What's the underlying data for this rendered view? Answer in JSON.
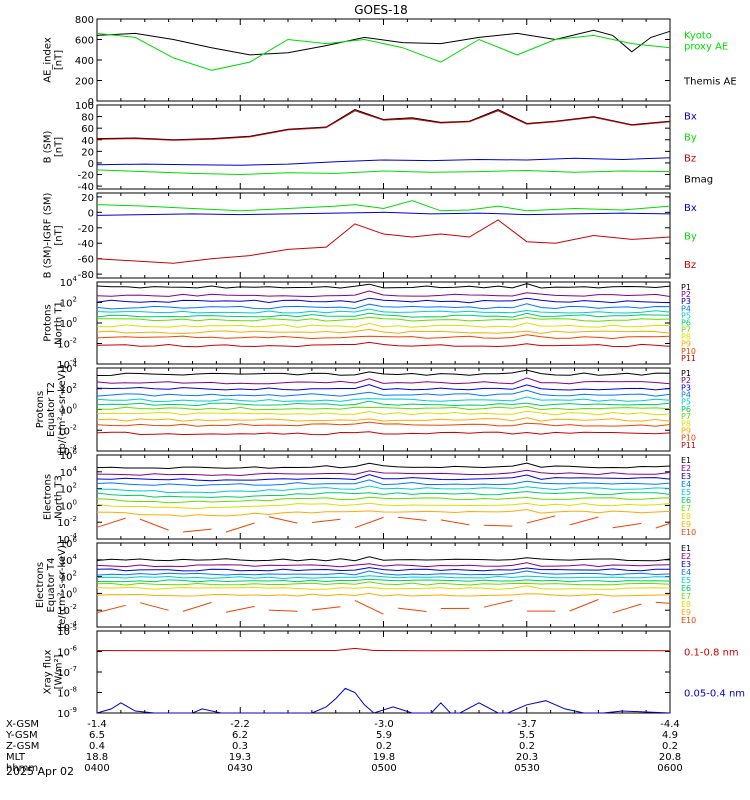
{
  "title": "GOES-18",
  "date": "2025 Apr 02",
  "ephemeris": {
    "rows": [
      {
        "label": "X-GSM",
        "values": [
          "-1.4",
          "-2.2",
          "-3.0",
          "-3.7",
          "-4.4"
        ]
      },
      {
        "label": "Y-GSM",
        "values": [
          "6.5",
          "6.2",
          "5.9",
          "5.5",
          "4.9"
        ]
      },
      {
        "label": "Z-GSM",
        "values": [
          "0.4",
          "0.3",
          "0.2",
          "0.2",
          "0.2"
        ]
      },
      {
        "label": "MLT",
        "values": [
          "18.8",
          "19.3",
          "19.8",
          "20.3",
          "20.8"
        ]
      },
      {
        "label": "hhmm",
        "values": [
          "0400",
          "0430",
          "0500",
          "0530",
          "0600"
        ]
      }
    ]
  },
  "colors": {
    "black": "#000000",
    "green": "#00dd00",
    "blue": "#0000cc",
    "red": "#cc0000",
    "ramp": [
      "#000000",
      "#880088",
      "#0000dd",
      "#0077ff",
      "#00cccc",
      "#00cc66",
      "#66dd00",
      "#dddd00",
      "#ffaa00",
      "#ee4400",
      "#cc0000"
    ]
  },
  "chart_data": [
    {
      "type": "line",
      "panel": "ae",
      "ylabel": [
        "AE_index",
        "[nT]"
      ],
      "ylim": [
        0,
        800
      ],
      "yticks": [
        {
          "v": 0,
          "t": "0"
        },
        {
          "v": 200,
          "t": "200"
        },
        {
          "v": 400,
          "t": "400"
        },
        {
          "v": 600,
          "t": "600"
        },
        {
          "v": 800,
          "t": "800"
        }
      ],
      "xlim": [
        0,
        120
      ],
      "legend": [
        {
          "lines": [
            "Kyoto",
            "proxy AE"
          ],
          "color": "#00dd00"
        },
        {
          "lines": [
            "Themis AE"
          ],
          "color": "#000000"
        }
      ],
      "series": [
        {
          "name": "Themis AE",
          "color": "#000000",
          "x": [
            0,
            8,
            16,
            24,
            32,
            40,
            48,
            56,
            64,
            72,
            80,
            88,
            96,
            104,
            108,
            112,
            116,
            120
          ],
          "y": [
            640,
            660,
            600,
            520,
            450,
            470,
            540,
            620,
            570,
            560,
            620,
            660,
            600,
            690,
            640,
            480,
            620,
            680
          ]
        },
        {
          "name": "Kyoto proxy AE",
          "color": "#00dd00",
          "x": [
            0,
            8,
            16,
            24,
            32,
            40,
            48,
            56,
            64,
            72,
            80,
            88,
            96,
            104,
            112,
            120
          ],
          "y": [
            660,
            620,
            420,
            300,
            380,
            600,
            560,
            600,
            520,
            380,
            600,
            450,
            600,
            640,
            560,
            520
          ]
        }
      ]
    },
    {
      "type": "line",
      "panel": "bsm",
      "ylabel": [
        "B (SM)",
        "[nT]"
      ],
      "ylim": [
        -45,
        100
      ],
      "yticks": [
        {
          "v": -40,
          "t": "-40"
        },
        {
          "v": -20,
          "t": "-20"
        },
        {
          "v": 0,
          "t": "0"
        },
        {
          "v": 20,
          "t": "20"
        },
        {
          "v": 40,
          "t": "40"
        },
        {
          "v": 60,
          "t": "60"
        },
        {
          "v": 80,
          "t": "80"
        },
        {
          "v": 100,
          "t": "100"
        }
      ],
      "xlim": [
        0,
        120
      ],
      "legend": [
        {
          "lines": [
            "Bx"
          ],
          "color": "#0000cc"
        },
        {
          "lines": [
            "By"
          ],
          "color": "#00dd00"
        },
        {
          "lines": [
            "Bz"
          ],
          "color": "#cc0000"
        },
        {
          "lines": [
            "Bmag"
          ],
          "color": "#000000"
        }
      ],
      "series": [
        {
          "name": "Bmag",
          "color": "#000000",
          "x": [
            0,
            8,
            16,
            24,
            32,
            40,
            48,
            54,
            60,
            66,
            72,
            78,
            84,
            90,
            96,
            104,
            112,
            120
          ],
          "y": [
            42,
            43,
            40,
            42,
            46,
            58,
            62,
            92,
            75,
            78,
            70,
            72,
            92,
            68,
            72,
            80,
            66,
            72
          ]
        },
        {
          "name": "Bz",
          "color": "#cc0000",
          "x": [
            0,
            8,
            16,
            24,
            32,
            40,
            48,
            54,
            60,
            66,
            72,
            78,
            84,
            90,
            96,
            104,
            112,
            120
          ],
          "y": [
            41,
            42,
            39,
            41,
            45,
            57,
            61,
            90,
            74,
            76,
            69,
            71,
            90,
            67,
            71,
            79,
            65,
            71
          ]
        },
        {
          "name": "Bx",
          "color": "#0000cc",
          "x": [
            0,
            10,
            20,
            30,
            40,
            50,
            60,
            70,
            80,
            90,
            100,
            110,
            120
          ],
          "y": [
            -3,
            -2,
            -3,
            -4,
            -2,
            2,
            5,
            4,
            6,
            5,
            8,
            6,
            9
          ]
        },
        {
          "name": "By",
          "color": "#00dd00",
          "x": [
            0,
            10,
            20,
            30,
            40,
            50,
            60,
            70,
            80,
            90,
            100,
            110,
            120
          ],
          "y": [
            -12,
            -15,
            -18,
            -20,
            -17,
            -18,
            -14,
            -16,
            -15,
            -13,
            -16,
            -14,
            -15
          ]
        }
      ]
    },
    {
      "type": "line",
      "panel": "digrf",
      "ylabel": [
        "B (SM)-IGRF (SM)",
        "[nT]"
      ],
      "ylim": [
        -85,
        25
      ],
      "yticks": [
        {
          "v": -80,
          "t": "-80"
        },
        {
          "v": -60,
          "t": "-60"
        },
        {
          "v": -40,
          "t": "-40"
        },
        {
          "v": -20,
          "t": "-20"
        },
        {
          "v": 0,
          "t": "0"
        },
        {
          "v": 20,
          "t": "20"
        }
      ],
      "xlim": [
        0,
        120
      ],
      "legend": [
        {
          "lines": [
            "Bx"
          ],
          "color": "#0000cc"
        },
        {
          "lines": [
            "By"
          ],
          "color": "#00dd00"
        },
        {
          "lines": [
            "Bz"
          ],
          "color": "#cc0000"
        }
      ],
      "series": [
        {
          "name": "Bz",
          "color": "#cc0000",
          "x": [
            0,
            8,
            16,
            24,
            32,
            40,
            48,
            54,
            60,
            66,
            72,
            78,
            84,
            90,
            96,
            104,
            112,
            120
          ],
          "y": [
            -60,
            -63,
            -66,
            -60,
            -56,
            -48,
            -45,
            -15,
            -28,
            -32,
            -28,
            -32,
            -10,
            -38,
            -40,
            -30,
            -35,
            -32
          ]
        },
        {
          "name": "By",
          "color": "#00dd00",
          "x": [
            0,
            10,
            20,
            30,
            40,
            50,
            54,
            60,
            66,
            72,
            78,
            84,
            90,
            100,
            110,
            120
          ],
          "y": [
            10,
            8,
            5,
            2,
            5,
            8,
            10,
            5,
            15,
            2,
            3,
            8,
            2,
            5,
            3,
            8
          ]
        },
        {
          "name": "Bx",
          "color": "#0000cc",
          "x": [
            0,
            10,
            20,
            30,
            40,
            50,
            60,
            70,
            80,
            90,
            100,
            110,
            120
          ],
          "y": [
            -4,
            -3,
            -2,
            -3,
            -2,
            -1,
            0,
            -2,
            -1,
            -3,
            -2,
            -1,
            -2
          ]
        }
      ]
    },
    {
      "type": "line",
      "panel": "protons_north",
      "log": true,
      "ylabel": [
        "Protons",
        "North T1"
      ],
      "ylim": [
        -4,
        4
      ],
      "yticks": [
        {
          "v": -4,
          "t": "10",
          "e": "-4"
        },
        {
          "v": -2,
          "t": "10",
          "e": "-2"
        },
        {
          "v": 0,
          "t": "10",
          "e": "0"
        },
        {
          "v": 2,
          "t": "10",
          "e": "2"
        },
        {
          "v": 4,
          "t": "10",
          "e": "4"
        }
      ],
      "xlim": [
        0,
        120
      ],
      "legend_labels": [
        "P1",
        "P2",
        "P3",
        "P4",
        "P5",
        "P6",
        "P7",
        "P8",
        "P9",
        "P10",
        "P11"
      ],
      "levels": [
        3.5,
        2.7,
        2.1,
        1.5,
        1.1,
        0.7,
        0.3,
        -0.3,
        -0.9,
        -1.4,
        -2.2
      ]
    },
    {
      "type": "line",
      "panel": "protons_equator",
      "log": true,
      "ylabel": [
        "Protons",
        "Equator T2",
        "[p/(cm²-s-sr-keV)]"
      ],
      "ylim": [
        -4,
        4
      ],
      "yticks": [
        {
          "v": -4,
          "t": "10",
          "e": "-4"
        },
        {
          "v": -2,
          "t": "10",
          "e": "-2"
        },
        {
          "v": 0,
          "t": "10",
          "e": "0"
        },
        {
          "v": 2,
          "t": "10",
          "e": "2"
        },
        {
          "v": 4,
          "t": "10",
          "e": "4"
        }
      ],
      "xlim": [
        0,
        120
      ],
      "legend_labels": [
        "P1",
        "P2",
        "P3",
        "P4",
        "P5",
        "P6",
        "P7",
        "P8",
        "P9",
        "P10",
        "P11"
      ],
      "levels": [
        3.4,
        2.6,
        2.0,
        1.4,
        0.9,
        0.5,
        0.1,
        -0.4,
        -1.0,
        -1.5,
        -2.3
      ]
    },
    {
      "type": "line",
      "panel": "electrons_north",
      "log": true,
      "ylabel": [
        "Electrons",
        "North T3"
      ],
      "ylim": [
        -4,
        6
      ],
      "yticks": [
        {
          "v": -4,
          "t": "10",
          "e": "-4"
        },
        {
          "v": -2,
          "t": "10",
          "e": "-2"
        },
        {
          "v": 0,
          "t": "10",
          "e": "0"
        },
        {
          "v": 2,
          "t": "10",
          "e": "2"
        },
        {
          "v": 4,
          "t": "10",
          "e": "4"
        },
        {
          "v": 6,
          "t": "10",
          "e": "6"
        }
      ],
      "xlim": [
        0,
        120
      ],
      "legend_labels": [
        "E1",
        "E2",
        "E3",
        "E4",
        "E5",
        "E6",
        "E7",
        "E8",
        "E9",
        "E10"
      ],
      "levels": [
        4.6,
        3.8,
        3.2,
        2.6,
        2.0,
        1.4,
        0.8,
        0.1,
        -0.8,
        -2.0
      ]
    },
    {
      "type": "line",
      "panel": "electrons_equator",
      "log": true,
      "ylabel": [
        "Electrons",
        "Equator T4",
        "[e/(cm²-s-sr-keV)]"
      ],
      "ylim": [
        -4,
        6
      ],
      "yticks": [
        {
          "v": -4,
          "t": "10",
          "e": "-4"
        },
        {
          "v": -2,
          "t": "10",
          "e": "-2"
        },
        {
          "v": 0,
          "t": "10",
          "e": "0"
        },
        {
          "v": 2,
          "t": "10",
          "e": "2"
        },
        {
          "v": 4,
          "t": "10",
          "e": "4"
        },
        {
          "v": 6,
          "t": "10",
          "e": "6"
        }
      ],
      "xlim": [
        0,
        120
      ],
      "legend_labels": [
        "E1",
        "E2",
        "E3",
        "E4",
        "E5",
        "E6",
        "E7",
        "E8",
        "E9",
        "E10"
      ],
      "levels": [
        4.0,
        3.3,
        2.8,
        2.3,
        1.9,
        1.5,
        1.1,
        0.6,
        -0.2,
        -1.6
      ]
    },
    {
      "type": "line",
      "panel": "xray",
      "log": true,
      "ylabel": [
        "Xray flux",
        "[W/m²]"
      ],
      "ylim": [
        -9,
        -5
      ],
      "yticks": [
        {
          "v": -9,
          "t": "10",
          "e": "-9"
        },
        {
          "v": -8,
          "t": "10",
          "e": "-8"
        },
        {
          "v": -7,
          "t": "10",
          "e": "-7"
        },
        {
          "v": -6,
          "t": "10",
          "e": "-6"
        },
        {
          "v": -5,
          "t": "10",
          "e": "-5"
        }
      ],
      "xlim": [
        0,
        120
      ],
      "legend": [
        {
          "lines": [
            "0.1-0.8 nm"
          ],
          "color": "#cc0000"
        },
        {
          "lines": [
            "0.05-0.4 nm"
          ],
          "color": "#0000cc"
        }
      ],
      "series": [
        {
          "name": "0.1-0.8 nm",
          "color": "#cc0000",
          "x": [
            0,
            20,
            40,
            50,
            54,
            58,
            70,
            90,
            120
          ],
          "y": [
            -5.95,
            -5.96,
            -5.95,
            -5.95,
            -5.85,
            -5.95,
            -5.96,
            -5.95,
            -5.96
          ]
        },
        {
          "name": "0.05-0.4 nm",
          "color": "#0000cc",
          "x": [
            0,
            3,
            5,
            8,
            12,
            20,
            22,
            26,
            30,
            40,
            45,
            48,
            50,
            52,
            54,
            56,
            58,
            62,
            66,
            70,
            72,
            74,
            76,
            80,
            84,
            86,
            90,
            94,
            98,
            102,
            106,
            110,
            120
          ],
          "y": [
            -9,
            -8.8,
            -8.5,
            -8.9,
            -9,
            -9,
            -8.8,
            -9,
            -9,
            -9,
            -9,
            -8.7,
            -8.3,
            -7.8,
            -8.0,
            -8.6,
            -9,
            -8.7,
            -9,
            -9,
            -8.5,
            -9,
            -9,
            -8.5,
            -9,
            -9,
            -8.6,
            -8.4,
            -8.8,
            -9,
            -9,
            -8.9,
            -9
          ]
        }
      ]
    }
  ]
}
